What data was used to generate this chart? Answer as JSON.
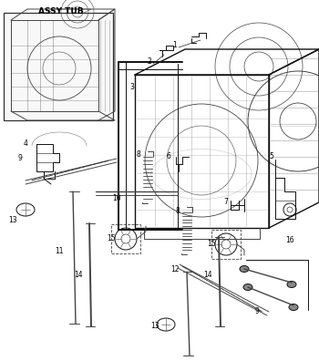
{
  "title": "ASSY TUB",
  "bg_color": "#ffffff",
  "lc": "#444444",
  "lc_dark": "#111111",
  "fig_width": 3.5,
  "fig_height": 3.96,
  "dpi": 100
}
